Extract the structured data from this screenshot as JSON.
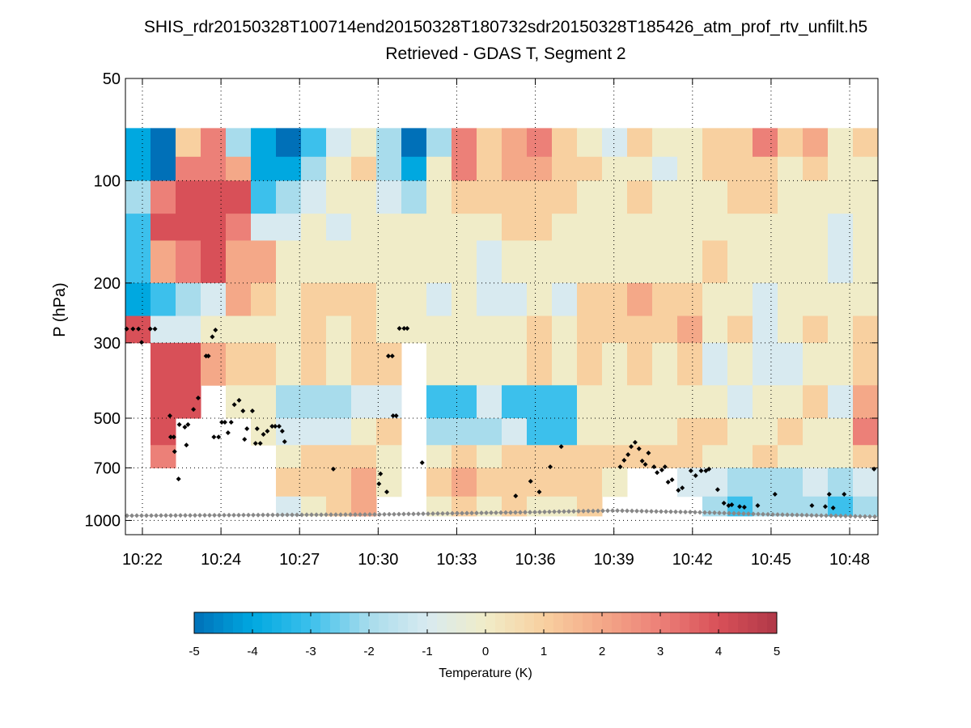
{
  "chart_data": {
    "type": "heatmap",
    "title": "SHIS_rdr20150328T100714end20150328T180732sdr20150328T185426_atm_prof_rtv_unfilt.h5",
    "subtitle": "Retrieved - GDAS T, Segment 2",
    "ylabel": "P (hPa)",
    "yscale": "log",
    "ylim": [
      50,
      1100
    ],
    "yticks": [
      50,
      100,
      200,
      300,
      500,
      700,
      1000
    ],
    "ytick_labels": [
      "50",
      "100",
      "200",
      "300",
      "500",
      "700",
      "1000"
    ],
    "xlim": [
      -0.216,
      9.36
    ],
    "xticks": [
      0,
      1,
      2,
      3,
      4,
      5,
      6,
      7,
      8,
      9
    ],
    "xtick_labels": [
      "10:22",
      "10:24",
      "10:27",
      "10:30",
      "10:33",
      "10:36",
      "10:39",
      "10:42",
      "10:45",
      "10:48"
    ],
    "grid": true,
    "colorbar": {
      "label": "Temperature (K)",
      "range": [
        -5,
        5
      ],
      "ticks": [
        -5,
        -4,
        -3,
        -2,
        -1,
        0,
        1,
        2,
        3,
        4,
        5
      ],
      "tick_labels": [
        "-5",
        "-4",
        "-3",
        "-2",
        "-1",
        "0",
        "1",
        "2",
        "3",
        "4",
        "5"
      ],
      "placement": "bottom",
      "colors": [
        "#0070b8",
        "#00a8e0",
        "#3cc0ec",
        "#a8dcec",
        "#d8eaf0",
        "#f0ecc8",
        "#f8d0a0",
        "#f4a888",
        "#ec8078",
        "#d85058",
        "#b03848"
      ]
    },
    "pressure_edges": [
      70,
      85,
      100,
      125,
      150,
      200,
      250,
      300,
      400,
      500,
      600,
      700,
      850,
      970
    ],
    "values": [
      [
        -4,
        -4,
        -2,
        -3,
        -3,
        -4,
        4,
        null,
        null,
        null,
        null,
        null,
        null
      ],
      [
        -5,
        -5,
        3,
        4,
        2,
        -3,
        -1,
        4,
        4,
        4,
        3,
        null,
        null
      ],
      [
        1,
        3,
        4,
        4,
        3,
        -2,
        -1,
        4,
        4,
        null,
        null,
        null,
        null
      ],
      [
        3,
        3,
        4,
        4,
        4,
        -1,
        0,
        2,
        null,
        null,
        null,
        null,
        null
      ],
      [
        -2,
        2,
        4,
        3,
        2,
        2,
        0,
        1,
        0,
        null,
        null,
        null,
        null
      ],
      [
        -4,
        -4,
        -3,
        -1,
        2,
        1,
        0,
        1,
        0,
        0,
        null,
        null,
        null
      ],
      [
        -5,
        -4,
        -2,
        -1,
        0,
        0,
        0,
        0,
        -2,
        -1,
        0,
        1,
        -1
      ],
      [
        -3,
        -2,
        -1,
        0,
        0,
        1,
        1,
        1,
        -2,
        -1,
        1,
        1,
        0
      ],
      [
        -1,
        0,
        0,
        -1,
        0,
        1,
        0,
        0,
        -2,
        -1,
        1,
        1,
        1
      ],
      [
        0,
        1,
        0,
        0,
        0,
        1,
        1,
        1,
        -1,
        0,
        1,
        2,
        2
      ],
      [
        -2,
        -2,
        -1,
        0,
        0,
        0,
        0,
        1,
        -1,
        1,
        0,
        0,
        null
      ],
      [
        -5,
        -4,
        -2,
        0,
        0,
        0,
        0,
        null,
        null,
        null,
        null,
        null,
        null
      ],
      [
        -2,
        0,
        0,
        0,
        0,
        -1,
        0,
        0,
        -3,
        -2,
        0,
        1,
        0
      ],
      [
        3,
        3,
        1,
        0,
        0,
        0,
        0,
        0,
        -3,
        -2,
        1,
        2,
        1
      ],
      [
        1,
        1,
        1,
        0,
        -1,
        -1,
        0,
        0,
        -1,
        -2,
        0,
        1,
        0
      ],
      [
        2,
        2,
        1,
        1,
        0,
        -1,
        0,
        0,
        -3,
        -1,
        1,
        1,
        1
      ],
      [
        3,
        2,
        1,
        1,
        0,
        0,
        1,
        1,
        -3,
        -3,
        1,
        1,
        0
      ],
      [
        1,
        1,
        1,
        0,
        0,
        -1,
        0,
        0,
        -3,
        -3,
        1,
        1,
        0
      ],
      [
        0,
        1,
        0,
        0,
        0,
        1,
        1,
        1,
        0,
        0,
        1,
        1,
        1
      ],
      [
        -1,
        0,
        0,
        0,
        0,
        1,
        1,
        0,
        0,
        0,
        1,
        0,
        null
      ],
      [
        1,
        0,
        1,
        0,
        0,
        2,
        1,
        1,
        0,
        0,
        1,
        null,
        null
      ],
      [
        0,
        -1,
        0,
        0,
        0,
        1,
        1,
        0,
        0,
        0,
        1,
        null,
        null
      ],
      [
        0,
        0,
        0,
        0,
        0,
        1,
        2,
        1,
        0,
        1,
        1,
        -1,
        null
      ],
      [
        1,
        1,
        0,
        0,
        1,
        0,
        0,
        -1,
        0,
        1,
        0,
        -1,
        -2
      ],
      [
        1,
        1,
        1,
        0,
        0,
        0,
        1,
        0,
        -1,
        0,
        0,
        -2,
        -3
      ],
      [
        3,
        1,
        1,
        0,
        0,
        -1,
        -1,
        -1,
        0,
        0,
        1,
        -2,
        -2
      ],
      [
        1,
        0,
        0,
        0,
        0,
        0,
        0,
        -1,
        0,
        1,
        0,
        -2,
        -2
      ],
      [
        2,
        1,
        0,
        0,
        0,
        0,
        1,
        0,
        1,
        0,
        0,
        -1,
        -2
      ],
      [
        0,
        0,
        0,
        -1,
        -1,
        0,
        0,
        0,
        -1,
        0,
        0,
        -2,
        -3
      ],
      [
        1,
        0,
        0,
        0,
        0,
        0,
        1,
        1,
        2,
        3,
        1,
        -1,
        -2
      ]
    ],
    "cloud_top_points": [
      [
        -0.2,
        273
      ],
      [
        -0.12,
        273
      ],
      [
        -0.05,
        273
      ],
      [
        0.1,
        273
      ],
      [
        0.16,
        273
      ],
      [
        -0.01,
        299
      ],
      [
        0.35,
        492
      ],
      [
        0.36,
        568
      ],
      [
        0.4,
        568
      ],
      [
        0.41,
        627
      ],
      [
        0.46,
        755
      ],
      [
        0.47,
        522
      ],
      [
        0.54,
        531
      ],
      [
        0.58,
        522
      ],
      [
        0.56,
        600
      ],
      [
        0.65,
        471
      ],
      [
        0.71,
        436
      ],
      [
        0.81,
        328
      ],
      [
        0.84,
        328
      ],
      [
        0.89,
        288
      ],
      [
        0.93,
        275
      ],
      [
        0.91,
        568
      ],
      [
        0.97,
        568
      ],
      [
        1.01,
        514
      ],
      [
        1.05,
        514
      ],
      [
        1.09,
        552
      ],
      [
        1.13,
        514
      ],
      [
        1.17,
        456
      ],
      [
        1.23,
        443
      ],
      [
        1.28,
        476
      ],
      [
        1.3,
        577
      ],
      [
        1.33,
        537
      ],
      [
        1.4,
        476
      ],
      [
        1.44,
        593
      ],
      [
        1.46,
        537
      ],
      [
        1.5,
        593
      ],
      [
        1.54,
        558
      ],
      [
        1.59,
        546
      ],
      [
        1.65,
        528
      ],
      [
        1.69,
        528
      ],
      [
        1.74,
        528
      ],
      [
        1.78,
        546
      ],
      [
        1.81,
        586
      ],
      [
        2.43,
        706
      ],
      [
        3.01,
        780
      ],
      [
        3.03,
        729
      ],
      [
        3.11,
        824
      ],
      [
        3.13,
        328
      ],
      [
        3.18,
        328
      ],
      [
        3.19,
        492
      ],
      [
        3.23,
        492
      ],
      [
        3.27,
        272
      ],
      [
        3.33,
        272
      ],
      [
        3.37,
        272
      ],
      [
        3.56,
        676
      ],
      [
        4.75,
        847
      ],
      [
        4.94,
        767
      ],
      [
        5.05,
        824
      ],
      [
        5.19,
        695
      ],
      [
        5.33,
        606
      ],
      [
        6.08,
        695
      ],
      [
        6.13,
        665
      ],
      [
        6.18,
        640
      ],
      [
        6.22,
        606
      ],
      [
        6.27,
        589
      ],
      [
        6.32,
        615
      ],
      [
        6.36,
        668
      ],
      [
        6.4,
        684
      ],
      [
        6.44,
        633
      ],
      [
        6.51,
        695
      ],
      [
        6.55,
        723
      ],
      [
        6.61,
        710
      ],
      [
        6.65,
        695
      ],
      [
        6.69,
        771
      ],
      [
        6.74,
        759
      ],
      [
        6.82,
        815
      ],
      [
        6.87,
        802
      ],
      [
        6.98,
        714
      ],
      [
        7.04,
        738
      ],
      [
        7.11,
        714
      ],
      [
        7.17,
        714
      ],
      [
        7.21,
        706
      ],
      [
        7.32,
        811
      ],
      [
        7.4,
        889
      ],
      [
        7.46,
        904
      ],
      [
        7.5,
        899
      ],
      [
        7.6,
        910
      ],
      [
        7.66,
        914
      ],
      [
        7.83,
        904
      ],
      [
        8.05,
        837
      ],
      [
        8.52,
        904
      ],
      [
        8.69,
        910
      ],
      [
        8.74,
        837
      ],
      [
        8.79,
        918
      ],
      [
        8.93,
        837
      ],
      [
        9.31,
        706
      ]
    ],
    "surface_pressure": [
      [
        -0.22,
        968
      ],
      [
        3.0,
        960
      ],
      [
        5.0,
        945
      ],
      [
        6.0,
        935
      ],
      [
        7.0,
        945
      ],
      [
        8.0,
        960
      ],
      [
        9.36,
        975
      ]
    ]
  }
}
